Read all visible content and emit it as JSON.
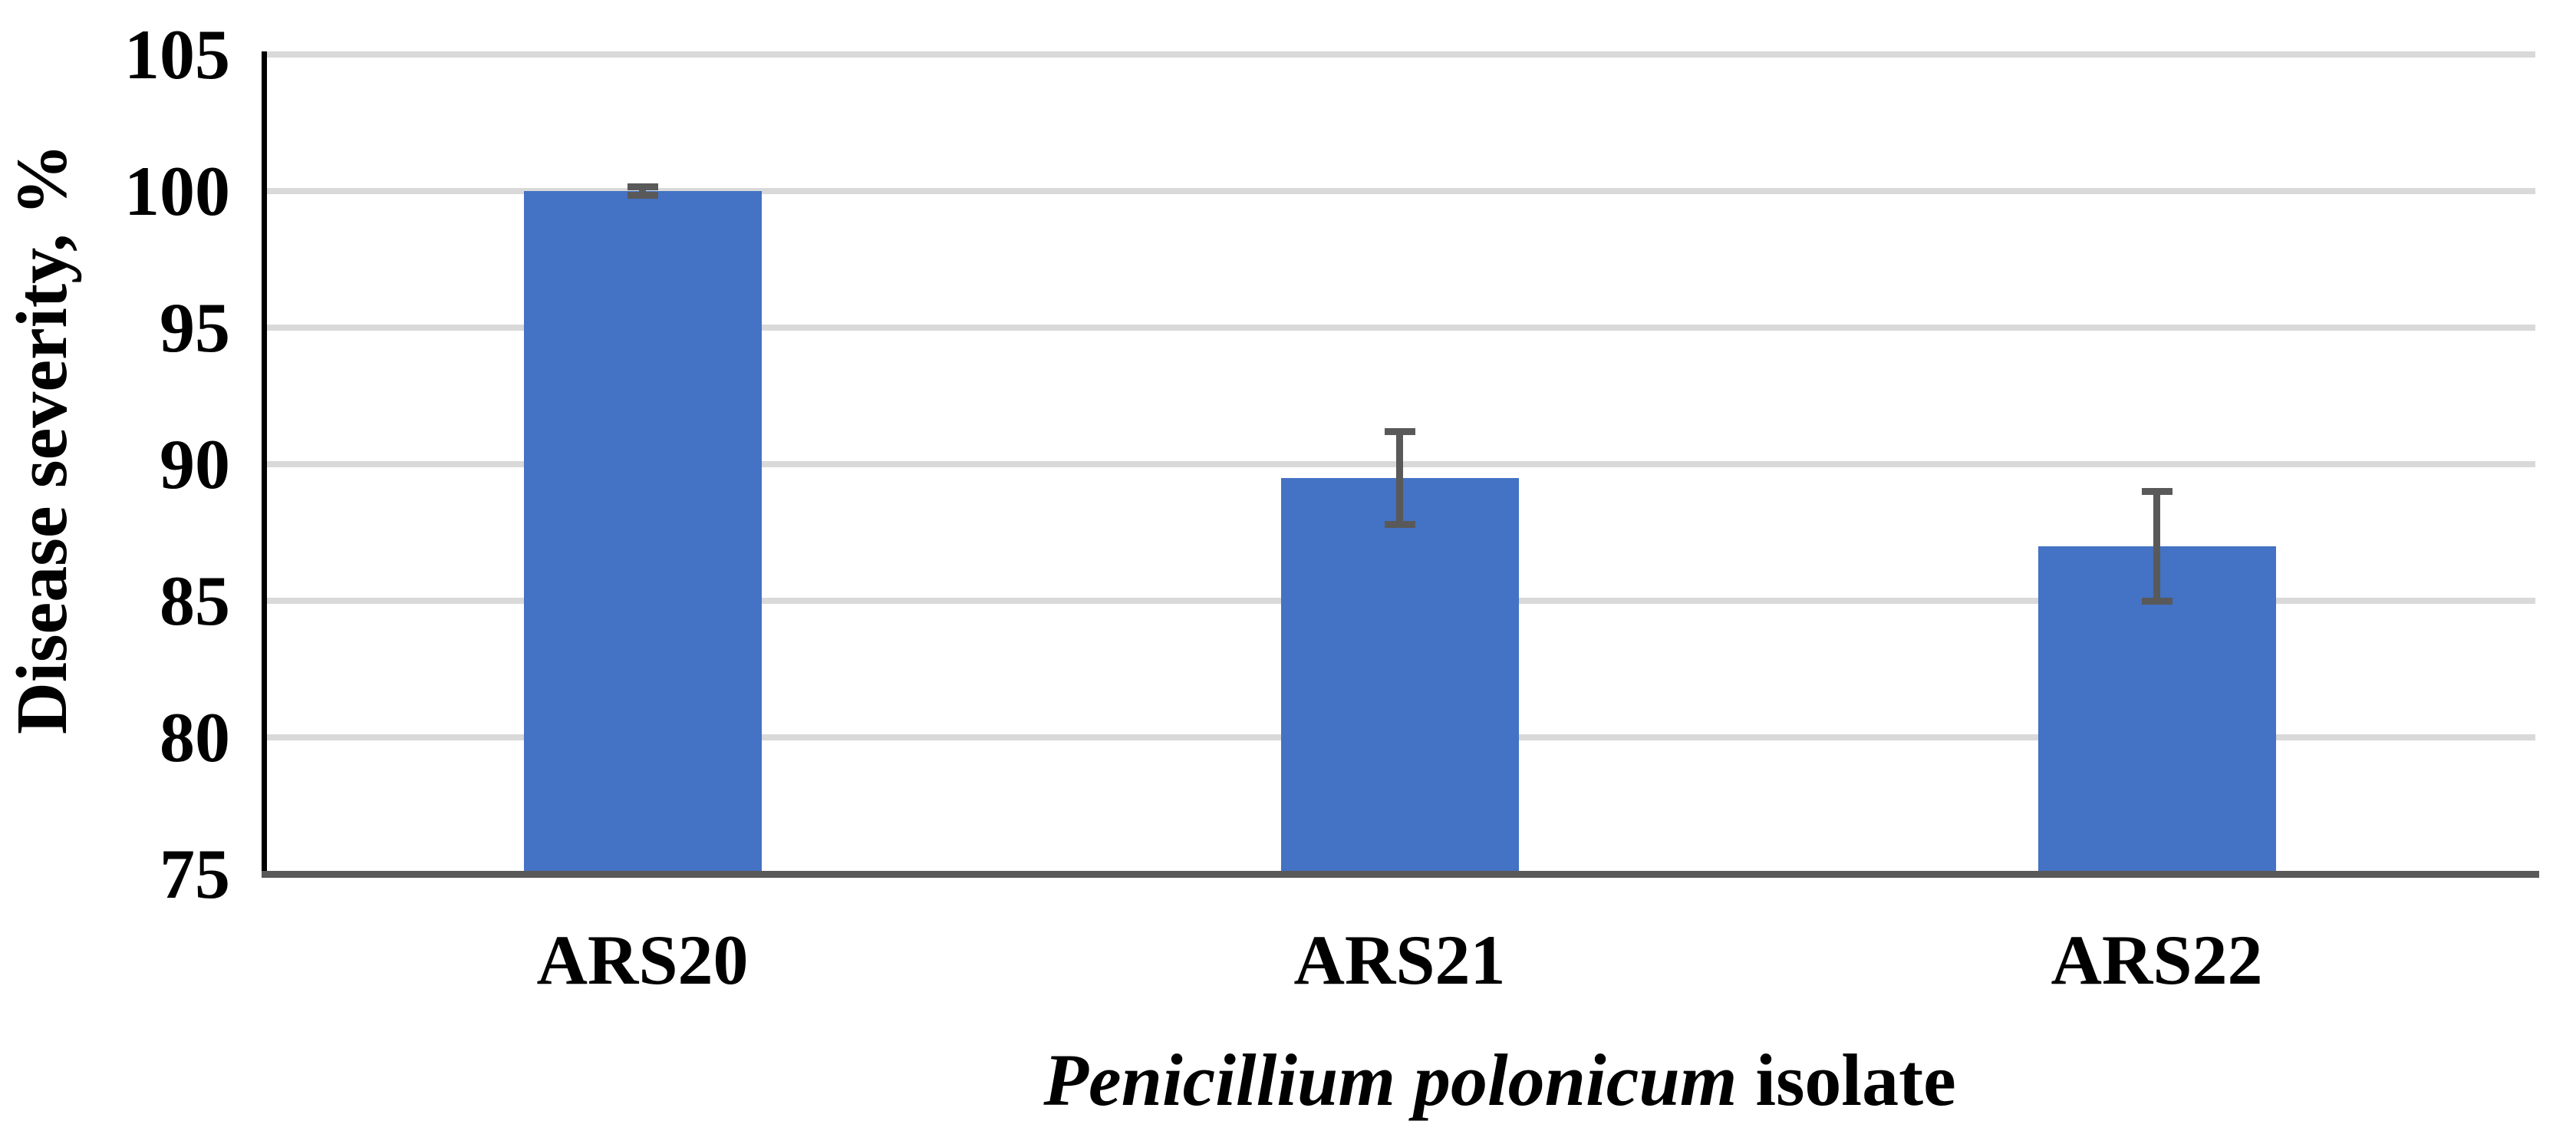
{
  "chart_data": {
    "type": "bar",
    "title": "",
    "categories": [
      "ARS20",
      "ARS21",
      "ARS22"
    ],
    "values": [
      100,
      89.5,
      87
    ],
    "error_bars": [
      0.15,
      1.7,
      2.0
    ],
    "ylabel": "Disease severity, %",
    "xlabel_italic": "Penicillium polonicum",
    "xlabel_regular": " isolate",
    "ylim": [
      75,
      105
    ],
    "ytick_step": 5,
    "yticks": [
      105,
      100,
      95,
      90,
      85,
      80,
      75
    ],
    "grid": "horizontal-only",
    "legend": "none",
    "colors": {
      "bar": "#4472C4",
      "error_bar": "#595959",
      "gridline": "#D9D9D9",
      "x_axis_line": "#595959",
      "y_axis_line": "#000000",
      "text": "#000000",
      "background": "#FFFFFF"
    }
  }
}
